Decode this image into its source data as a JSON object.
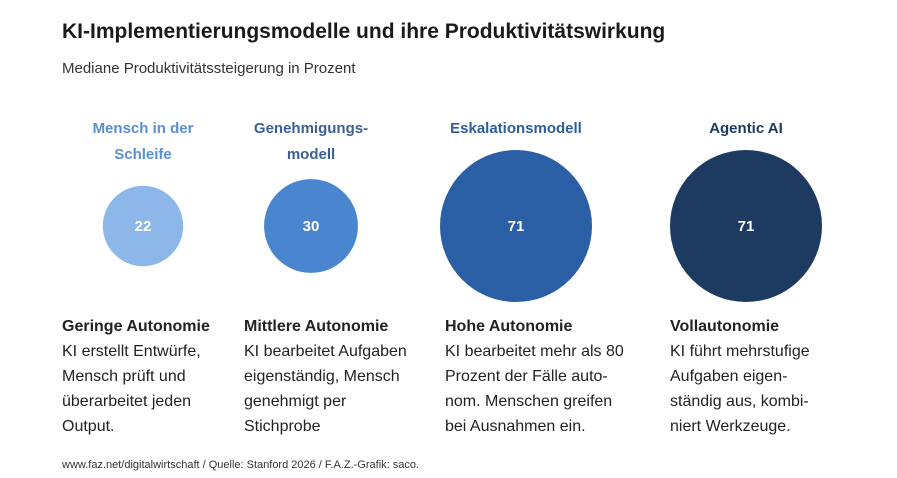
{
  "title": "KI-Implementierungsmodelle und ihre Produktivitätswirkung",
  "subtitle": "Mediane Produktivitätssteigerung in Prozent",
  "chart_data": {
    "type": "bubble",
    "title": "KI-Implementierungsmodelle und ihre Produktivitätswirkung",
    "subtitle": "Mediane Produktivitätssteigerung in Prozent",
    "categories": [
      "Mensch in der Schleife",
      "Genehmigungsmodell",
      "Eskalationsmodell",
      "Agentic AI"
    ],
    "values": [
      22,
      30,
      71,
      71
    ],
    "labels": [
      "22",
      "30",
      "71",
      "71"
    ],
    "colors": [
      "#8db7e8",
      "#4a86d0",
      "#2a5fa6",
      "#1d3b61"
    ],
    "label_colors": [
      "#5a8fd2",
      "#3c5f95",
      "#2f5d9c",
      "#1d3b61"
    ]
  },
  "columns": [
    {
      "head_lines": [
        "Mensch in der",
        "Schleife"
      ],
      "desc_title": "Geringe Autonomie",
      "desc_lines": [
        "KI erstellt Entwürfe,",
        "Mensch prüft und",
        "überarbeitet jeden",
        "Output."
      ]
    },
    {
      "head_lines": [
        "Genehmigungs-",
        "modell"
      ],
      "desc_title": "Mittlere Autonomie",
      "desc_lines": [
        "KI bearbeitet Aufgaben",
        "eigenständig, Mensch",
        "genehmigt per",
        "Stichprobe"
      ]
    },
    {
      "head_lines": [
        "Eskalationsmodell"
      ],
      "desc_title": "Hohe Autonomie",
      "desc_lines": [
        "KI bearbeitet mehr als 80",
        "Prozent der Fälle auto-",
        "nom. Menschen greifen",
        "bei Ausnahmen ein."
      ]
    },
    {
      "head_lines": [
        "Agentic AI"
      ],
      "desc_title": "Vollautonomie",
      "desc_lines": [
        "KI führt mehrstufige",
        "Aufgaben eigen-",
        "ständig aus, kombi-",
        "niert Werkzeuge."
      ]
    }
  ],
  "footer": "www.faz.net/digitalwirtschaft / Quelle: Stanford 2026 / F.A.Z.-Grafik: saco."
}
